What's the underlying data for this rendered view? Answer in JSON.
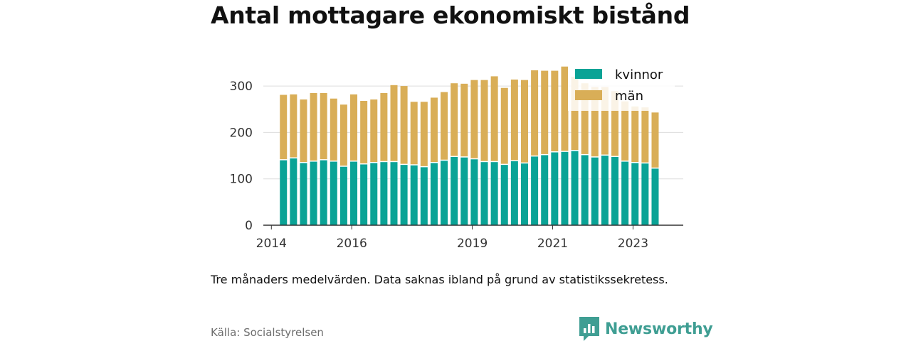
{
  "page_title": "Antal mottagare ekonomiskt bistånd",
  "note": "Tre månaders medelvärden. Data saknas ibland på grund av statistikssekretess.",
  "source": "Källa: Socialstyrelsen",
  "brand": {
    "name": "Newsworthy",
    "icon": "newsworthy-logo-icon"
  },
  "colors": {
    "kvinnor": "#0aa396",
    "man": "#d9ae57",
    "axis": "#333333",
    "grid": "#dddddd"
  },
  "chart_data": {
    "type": "bar",
    "stacked": true,
    "title": "Antal mottagare ekonomiskt bistånd",
    "xlabel": "",
    "ylabel": "",
    "ylim": [
      0,
      340
    ],
    "y_ticks": [
      0,
      100,
      200,
      300
    ],
    "x_range": [
      2013.8,
      2024.25
    ],
    "x_ticks": [
      2014,
      2016,
      2019,
      2021,
      2023
    ],
    "grid": true,
    "legend_position": "top-right",
    "x": [
      2014.3,
      2014.55,
      2014.8,
      2015.05,
      2015.3,
      2015.55,
      2015.8,
      2016.05,
      2016.3,
      2016.55,
      2016.8,
      2017.05,
      2017.3,
      2017.55,
      2017.8,
      2018.05,
      2018.3,
      2018.55,
      2018.8,
      2019.05,
      2019.3,
      2019.55,
      2019.8,
      2020.05,
      2020.3,
      2020.55,
      2020.8,
      2021.05,
      2021.3,
      2021.55,
      2021.8,
      2022.05,
      2022.3,
      2022.55,
      2022.8,
      2023.05,
      2023.3,
      2023.55
    ],
    "series": [
      {
        "name": "kvinnor",
        "values": [
          140,
          144,
          134,
          137,
          140,
          137,
          126,
          137,
          131,
          134,
          136,
          136,
          130,
          129,
          125,
          134,
          139,
          147,
          146,
          142,
          136,
          136,
          130,
          138,
          133,
          148,
          151,
          157,
          158,
          160,
          151,
          146,
          150,
          147,
          137,
          134,
          133,
          122
        ]
      },
      {
        "name": "män",
        "values": [
          141,
          138,
          137,
          148,
          145,
          136,
          134,
          145,
          137,
          137,
          149,
          166,
          170,
          137,
          141,
          141,
          148,
          159,
          159,
          171,
          177,
          185,
          166,
          176,
          180,
          186,
          182,
          176,
          184,
          160,
          155,
          152,
          148,
          142,
          130,
          122,
          121,
          121
        ]
      }
    ]
  }
}
